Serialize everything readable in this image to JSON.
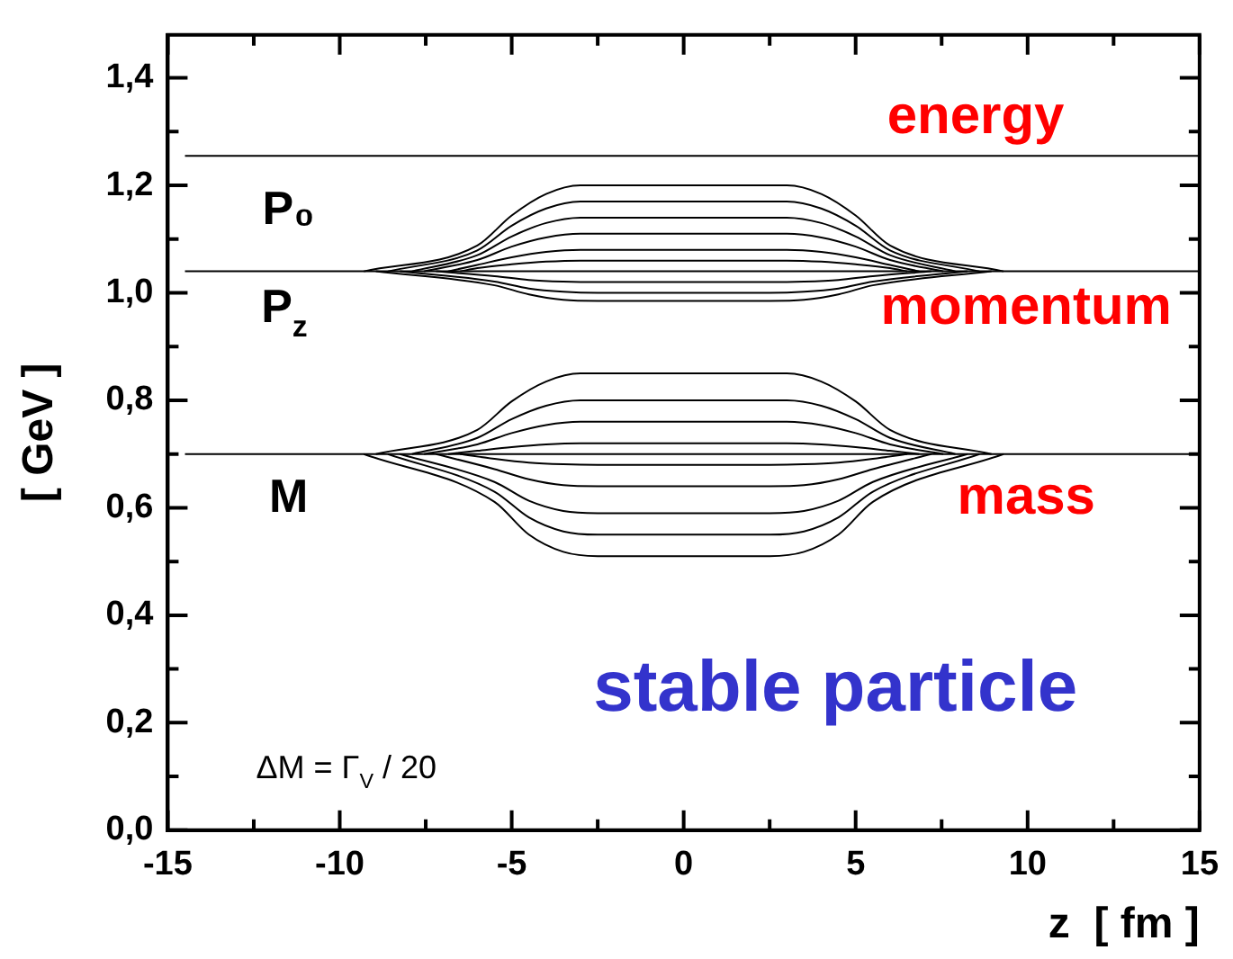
{
  "chart_data": {
    "type": "line",
    "xlabel": "z  [ fm ]",
    "ylabel": "[ GeV ]",
    "series": [
      {
        "color": "#000000",
        "x": [
          -14.5,
          15
        ],
        "values": [
          1.255,
          1.255
        ]
      },
      {
        "color": "#000000",
        "x": [
          -14.5,
          15
        ],
        "values": [
          1.04,
          1.04
        ]
      },
      {
        "color": "#000000",
        "x": [
          -14.5,
          15
        ],
        "values": [
          0.7,
          0.7
        ]
      },
      {
        "color": "#000000",
        "x": [
          -9.3,
          -6,
          -5,
          -4,
          -3,
          3,
          4,
          5,
          6,
          9.3
        ],
        "values": [
          1.04,
          1.088,
          1.144,
          1.184,
          1.2,
          1.2,
          1.184,
          1.144,
          1.088,
          1.04
        ]
      },
      {
        "color": "#000000",
        "x": [
          -8.6,
          -6,
          -5,
          -4,
          -3,
          3,
          4,
          5,
          6,
          8.6
        ],
        "values": [
          1.04,
          1.079,
          1.125,
          1.157,
          1.17,
          1.17,
          1.157,
          1.125,
          1.079,
          1.04
        ]
      },
      {
        "color": "#000000",
        "x": [
          -7.9,
          -6,
          -5,
          -4,
          -3,
          3,
          4,
          5,
          6,
          7.9
        ],
        "values": [
          1.04,
          1.07,
          1.105,
          1.13,
          1.14,
          1.14,
          1.13,
          1.105,
          1.07,
          1.04
        ]
      },
      {
        "color": "#000000",
        "x": [
          -7.55,
          -6,
          -5,
          -4,
          -3,
          3,
          4,
          5,
          6,
          7.55
        ],
        "values": [
          1.04,
          1.061,
          1.086,
          1.103,
          1.11,
          1.11,
          1.103,
          1.086,
          1.061,
          1.04
        ]
      },
      {
        "color": "#000000",
        "x": [
          -6.85,
          -6,
          -5,
          -4,
          -3,
          3,
          4,
          5,
          6,
          6.85
        ],
        "values": [
          1.04,
          1.052,
          1.066,
          1.076,
          1.08,
          1.08,
          1.076,
          1.066,
          1.052,
          1.04
        ]
      },
      {
        "color": "#000000",
        "x": [
          -6.5,
          -6,
          -5,
          -4,
          -3,
          3,
          4,
          5,
          6,
          6.5
        ],
        "values": [
          1.04,
          1.046,
          1.053,
          1.058,
          1.06,
          1.06,
          1.058,
          1.053,
          1.046,
          1.04
        ]
      },
      {
        "color": "#000000",
        "x": [
          -7.2,
          -5.5,
          -4.5,
          -3.5,
          -2.5,
          2.5,
          3.5,
          4.5,
          5.5,
          7.2
        ],
        "values": [
          1.04,
          1.031,
          1.024,
          1.021,
          1.02,
          1.02,
          1.021,
          1.024,
          1.031,
          1.04
        ]
      },
      {
        "color": "#000000",
        "x": [
          -8.25,
          -5.5,
          -4.5,
          -3.5,
          -2.5,
          2.5,
          3.5,
          4.5,
          5.5,
          8.25
        ],
        "values": [
          1.04,
          1.021,
          1.008,
          1.002,
          1.0,
          1.0,
          1.002,
          1.008,
          1.021,
          1.04
        ]
      },
      {
        "color": "#000000",
        "x": [
          -8.95,
          -5.5,
          -4.5,
          -3.5,
          -2.5,
          2.5,
          3.5,
          4.5,
          5.5,
          8.95
        ],
        "values": [
          1.04,
          1.014,
          0.997,
          0.987,
          0.985,
          0.985,
          0.987,
          0.997,
          1.014,
          1.04
        ]
      },
      {
        "color": "#000000",
        "x": [
          -8.95,
          -6,
          -5,
          -4,
          -3,
          3,
          4,
          5,
          6,
          8.95
        ],
        "values": [
          0.7,
          0.745,
          0.798,
          0.835,
          0.85,
          0.85,
          0.835,
          0.798,
          0.745,
          0.7
        ]
      },
      {
        "color": "#000000",
        "x": [
          -7.9,
          -6,
          -5,
          -4,
          -3,
          3,
          4,
          5,
          6,
          7.9
        ],
        "values": [
          0.7,
          0.73,
          0.765,
          0.79,
          0.8,
          0.8,
          0.79,
          0.765,
          0.73,
          0.7
        ]
      },
      {
        "color": "#000000",
        "x": [
          -7.55,
          -6,
          -5,
          -4,
          -3,
          3,
          4,
          5,
          6,
          7.55
        ],
        "values": [
          0.7,
          0.718,
          0.739,
          0.754,
          0.76,
          0.76,
          0.754,
          0.739,
          0.718,
          0.7
        ]
      },
      {
        "color": "#000000",
        "x": [
          -6.85,
          -6,
          -5,
          -4,
          -3,
          3,
          4,
          5,
          6,
          6.85
        ],
        "values": [
          0.7,
          0.706,
          0.713,
          0.718,
          0.72,
          0.72,
          0.718,
          0.713,
          0.706,
          0.7
        ]
      },
      {
        "color": "#000000",
        "x": [
          -6.5,
          -5.5,
          -4.5,
          -3.5,
          -2.5,
          2.5,
          3.5,
          4.5,
          5.5,
          6.5
        ],
        "values": [
          0.7,
          0.691,
          0.684,
          0.681,
          0.68,
          0.68,
          0.681,
          0.684,
          0.691,
          0.7
        ]
      },
      {
        "color": "#000000",
        "x": [
          -7.2,
          -5.5,
          -4.5,
          -3.5,
          -2.5,
          2.5,
          3.5,
          4.5,
          5.5,
          7.2
        ],
        "values": [
          0.7,
          0.672,
          0.653,
          0.642,
          0.64,
          0.64,
          0.642,
          0.653,
          0.672,
          0.7
        ]
      },
      {
        "color": "#000000",
        "x": [
          -8.25,
          -5.5,
          -4.5,
          -3.5,
          -2.5,
          2.5,
          3.5,
          4.5,
          5.5,
          8.25
        ],
        "values": [
          0.7,
          0.648,
          0.613,
          0.594,
          0.59,
          0.59,
          0.594,
          0.613,
          0.648,
          0.7
        ]
      },
      {
        "color": "#000000",
        "x": [
          -8.6,
          -5.5,
          -4.5,
          -3.5,
          -2.5,
          2.5,
          3.5,
          4.5,
          5.5,
          8.6
        ],
        "values": [
          0.7,
          0.63,
          0.582,
          0.556,
          0.55,
          0.55,
          0.556,
          0.582,
          0.63,
          0.7
        ]
      },
      {
        "color": "#000000",
        "x": [
          -9.3,
          -5.5,
          -4.5,
          -3.5,
          -2.5,
          2.5,
          3.5,
          4.5,
          5.5,
          9.3
        ],
        "values": [
          0.7,
          0.611,
          0.55,
          0.518,
          0.51,
          0.51,
          0.518,
          0.55,
          0.611,
          0.7
        ]
      }
    ],
    "xlim": [
      -15,
      15
    ],
    "xticks": [
      -15,
      {
        "value": -12.5,
        "label": null
      },
      -10,
      {
        "value": -7.5,
        "label": null
      },
      -5,
      {
        "value": -2.5,
        "label": null
      },
      0,
      {
        "value": 2.5,
        "label": null
      },
      5,
      {
        "value": 7.5,
        "label": null
      },
      10,
      {
        "value": 12.5,
        "label": null
      },
      15
    ],
    "ylim": [
      0,
      1.48
    ],
    "yticks": [
      {
        "value": 0,
        "label": "0,0"
      },
      {
        "value": 0.1,
        "label": null
      },
      {
        "value": 0.2,
        "label": "0,2"
      },
      {
        "value": 0.3,
        "label": null
      },
      {
        "value": 0.4,
        "label": "0,4"
      },
      {
        "value": 0.5,
        "label": null
      },
      {
        "value": 0.6,
        "label": "0,6"
      },
      {
        "value": 0.7,
        "label": null
      },
      {
        "value": 0.8,
        "label": "0,8"
      },
      {
        "value": 0.9,
        "label": null
      },
      {
        "value": 1.0,
        "label": "1,0"
      },
      {
        "value": 1.1,
        "label": null
      },
      {
        "value": 1.2,
        "label": "1,2"
      },
      {
        "value": 1.3,
        "label": null
      },
      {
        "value": 1.4,
        "label": "1,4"
      }
    ],
    "grid": false,
    "legend": false,
    "marker": "none",
    "line_style": "solid",
    "annotations": [
      "energy",
      "momentum",
      "mass",
      "P₀",
      "P$_{z}$",
      "M",
      "stable particle",
      "ΔM = Γ$_{V}$ / 20"
    ]
  }
}
